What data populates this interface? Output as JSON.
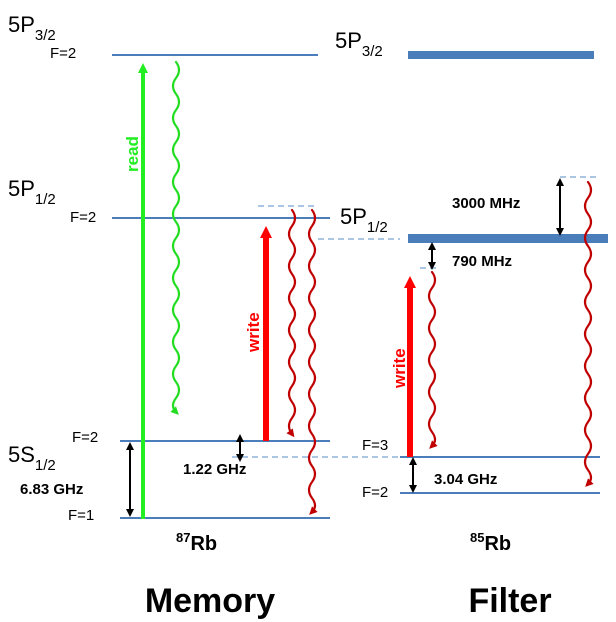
{
  "memory": {
    "levels": {
      "p32": {
        "name": "5P",
        "sub": "3/2",
        "f": "F=2"
      },
      "p12": {
        "name": "5P",
        "sub": "1/2",
        "f": "F=2"
      },
      "s12": {
        "name": "5S",
        "sub": "1/2",
        "f_upper": "F=2",
        "f_lower": "F=1"
      }
    },
    "read_label": "read",
    "write_label": "write",
    "ground_split": "6.83 GHz",
    "detuning": "1.22 GHz",
    "isotope_mass": "87",
    "isotope_symbol": "Rb",
    "title": "Memory"
  },
  "filter": {
    "levels": {
      "p32": {
        "name": "5P",
        "sub": "3/2"
      },
      "p12": {
        "name": "5P",
        "sub": "1/2"
      },
      "ground": {
        "f_upper": "F=3",
        "f_lower": "F=2"
      }
    },
    "write_label": "write",
    "upper_split": "3000 MHz",
    "mid_split": "790 MHz",
    "ground_split": "3.04 GHz",
    "isotope_mass": "85",
    "isotope_symbol": "Rb",
    "title": "Filter"
  },
  "colors": {
    "level": "#4a7ebb",
    "read": "#22ee22",
    "write": "#ff0000",
    "decay_green": "#22dd22",
    "decay_red": "#c00000"
  }
}
